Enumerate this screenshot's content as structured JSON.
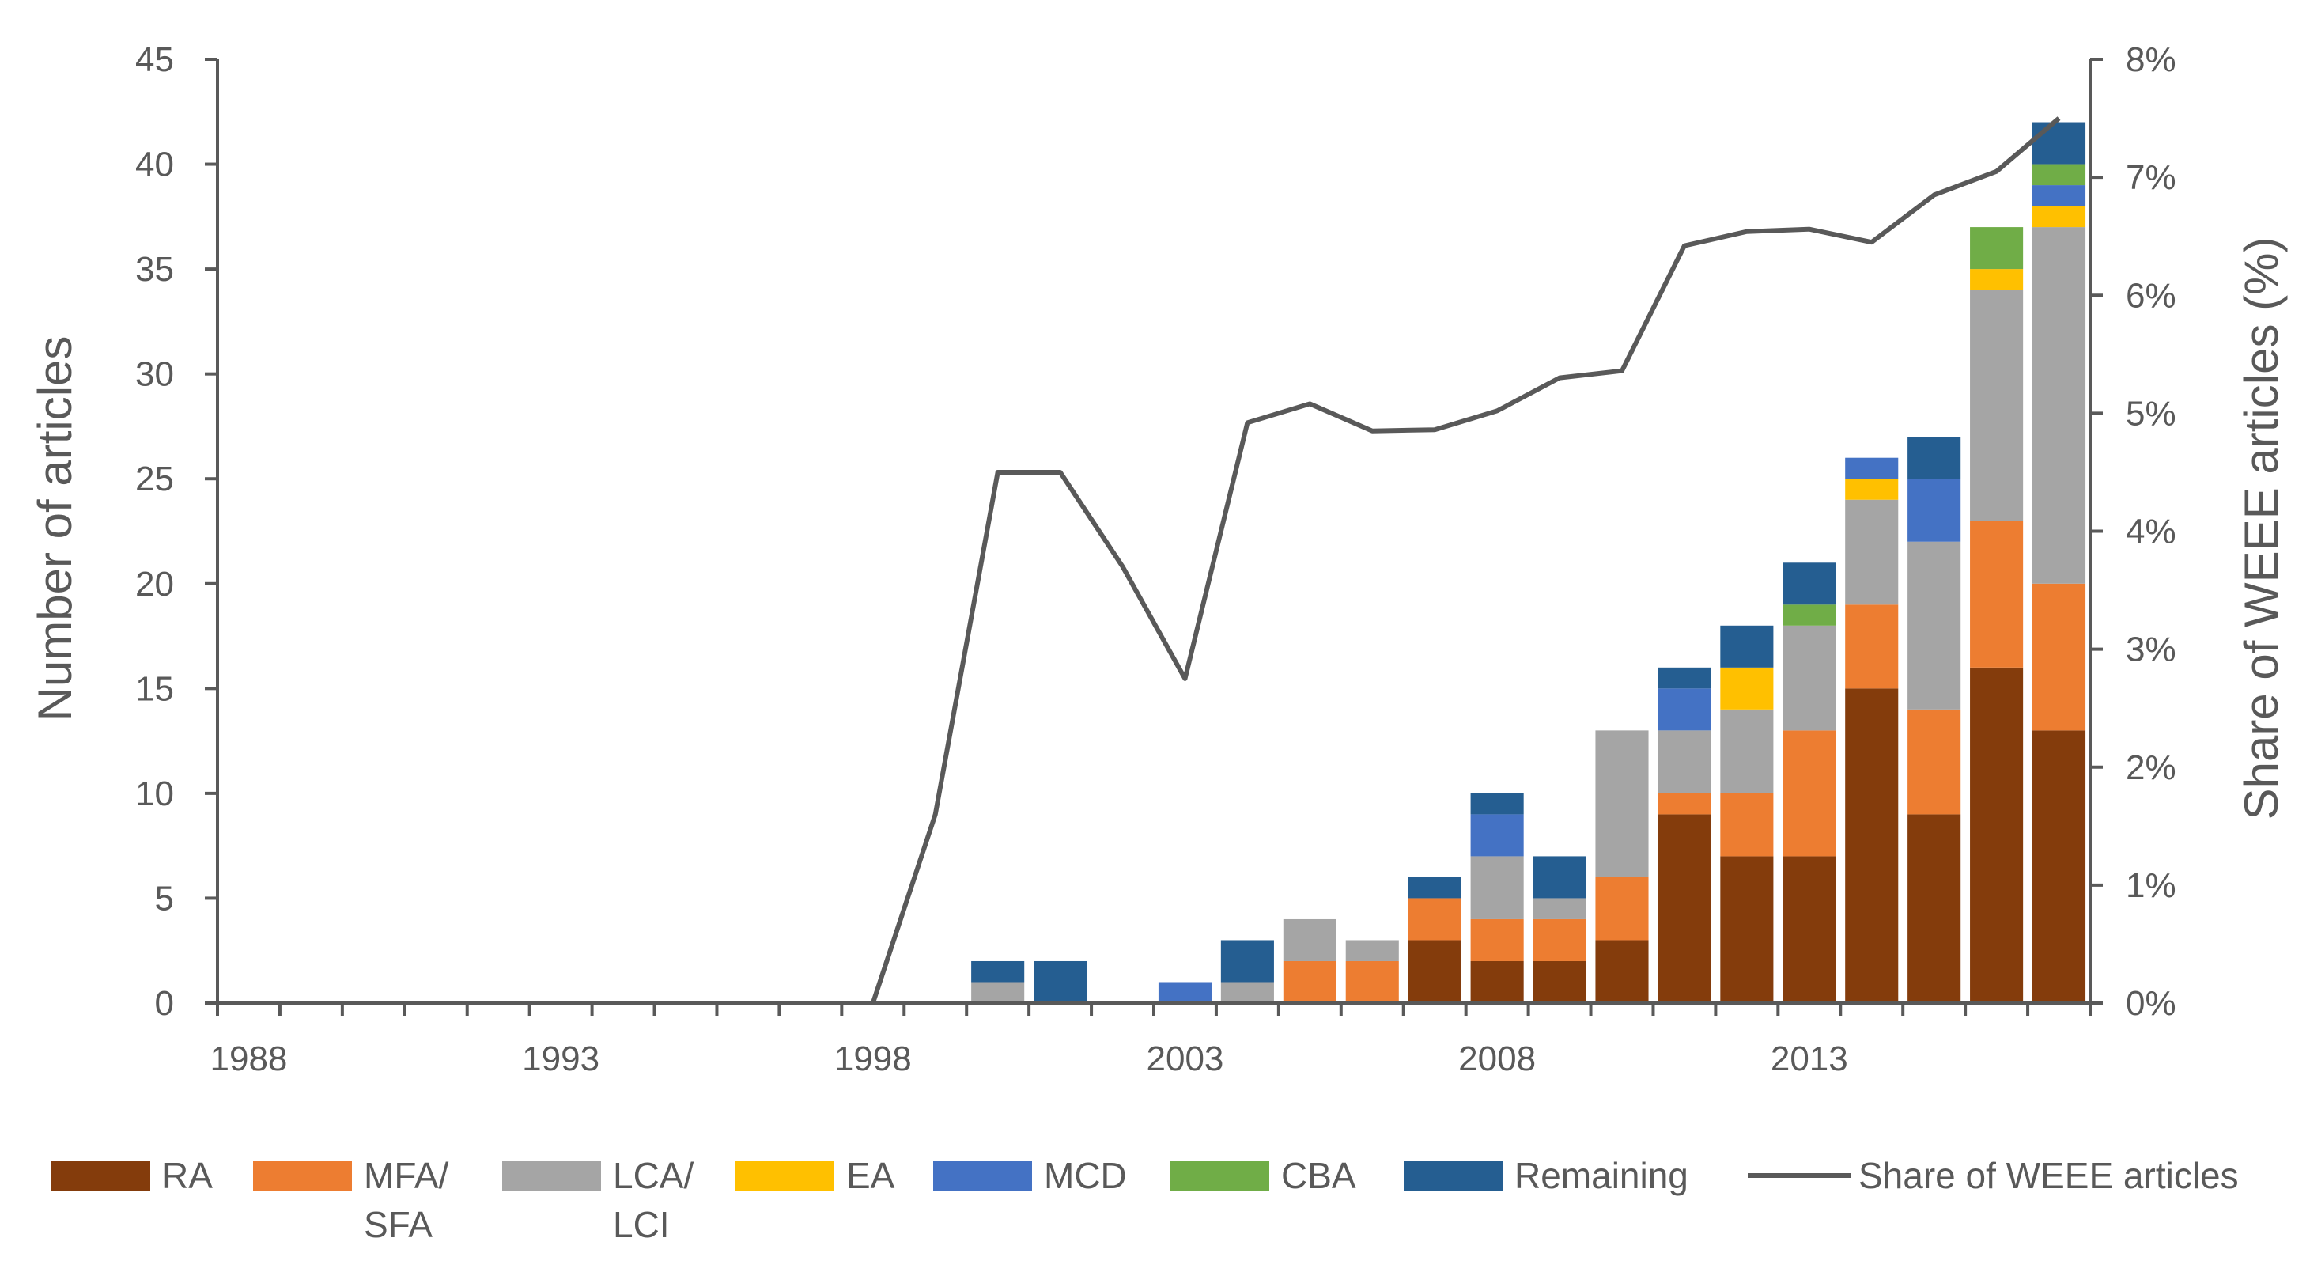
{
  "chart_data": {
    "type": "bar",
    "stacked": true,
    "xlabel": "",
    "ylabel": "Number of articles",
    "y2label": "Share of WEEE articles (%)",
    "ylim": [
      0,
      45
    ],
    "y2lim": [
      0,
      8
    ],
    "y_ticks": [
      "0",
      "5",
      "10",
      "15",
      "20",
      "25",
      "30",
      "35",
      "40",
      "45"
    ],
    "y2_ticks": [
      "0%",
      "1%",
      "2%",
      "3%",
      "4%",
      "5%",
      "6%",
      "7%",
      "8%"
    ],
    "x_tick_labels": [
      "1988",
      "1993",
      "1998",
      "2003",
      "2008",
      "2013"
    ],
    "categories": [
      1988,
      1989,
      1990,
      1991,
      1992,
      1993,
      1994,
      1995,
      1996,
      1997,
      1998,
      1999,
      2000,
      2001,
      2002,
      2003,
      2004,
      2005,
      2006,
      2007,
      2008,
      2009,
      2010,
      2011,
      2012,
      2013,
      2014,
      2015,
      2016,
      2017
    ],
    "series": [
      {
        "name": "RA",
        "color": "#843C0C",
        "values": [
          0,
          0,
          0,
          0,
          0,
          0,
          0,
          0,
          0,
          0,
          0,
          0,
          0,
          0,
          0,
          0,
          0,
          0,
          0,
          3,
          2,
          2,
          3,
          9,
          7,
          7,
          15,
          9,
          16,
          13
        ]
      },
      {
        "name": "MFA/SFA",
        "label_lines": [
          "MFA/",
          "SFA"
        ],
        "color": "#ED7D31",
        "values": [
          0,
          0,
          0,
          0,
          0,
          0,
          0,
          0,
          0,
          0,
          0,
          0,
          0,
          0,
          0,
          0,
          0,
          2,
          2,
          2,
          2,
          2,
          3,
          1,
          3,
          6,
          4,
          5,
          7,
          7
        ]
      },
      {
        "name": "LCA/LCI",
        "label_lines": [
          "LCA/",
          "LCI"
        ],
        "color": "#A5A5A5",
        "values": [
          0,
          0,
          0,
          0,
          0,
          0,
          0,
          0,
          0,
          0,
          0,
          0,
          1,
          0,
          0,
          0,
          1,
          2,
          1,
          0,
          3,
          1,
          7,
          3,
          4,
          5,
          5,
          8,
          11,
          17
        ]
      },
      {
        "name": "EA",
        "color": "#FFC000",
        "values": [
          0,
          0,
          0,
          0,
          0,
          0,
          0,
          0,
          0,
          0,
          0,
          0,
          0,
          0,
          0,
          0,
          0,
          0,
          0,
          0,
          0,
          0,
          0,
          0,
          2,
          0,
          1,
          0,
          1,
          1
        ]
      },
      {
        "name": "MCD",
        "color": "#4472C4",
        "values": [
          0,
          0,
          0,
          0,
          0,
          0,
          0,
          0,
          0,
          0,
          0,
          0,
          0,
          0,
          0,
          1,
          0,
          0,
          0,
          0,
          2,
          0,
          0,
          2,
          0,
          0,
          1,
          3,
          0,
          1
        ]
      },
      {
        "name": "CBA",
        "color": "#70AD47",
        "values": [
          0,
          0,
          0,
          0,
          0,
          0,
          0,
          0,
          0,
          0,
          0,
          0,
          0,
          0,
          0,
          0,
          0,
          0,
          0,
          0,
          0,
          0,
          0,
          0,
          0,
          1,
          0,
          0,
          2,
          1
        ]
      },
      {
        "name": "Remaining",
        "color": "#255E91",
        "values": [
          0,
          0,
          0,
          0,
          0,
          0,
          0,
          0,
          0,
          0,
          0,
          0,
          1,
          2,
          0,
          0,
          2,
          0,
          0,
          1,
          1,
          2,
          0,
          1,
          2,
          2,
          0,
          2,
          0,
          2
        ]
      }
    ],
    "line": {
      "name": "Share of WEEE articles",
      "color": "#595959",
      "axis": "y2",
      "values": [
        0,
        0,
        0,
        0,
        0,
        0,
        0,
        0,
        0,
        0,
        0,
        1.6,
        4.5,
        4.5,
        3.7,
        2.75,
        4.92,
        5.08,
        4.85,
        4.86,
        5.02,
        5.3,
        5.36,
        6.42,
        6.54,
        6.56,
        6.45,
        6.85,
        7.05,
        7.5
      ]
    },
    "legend_position": "bottom"
  }
}
